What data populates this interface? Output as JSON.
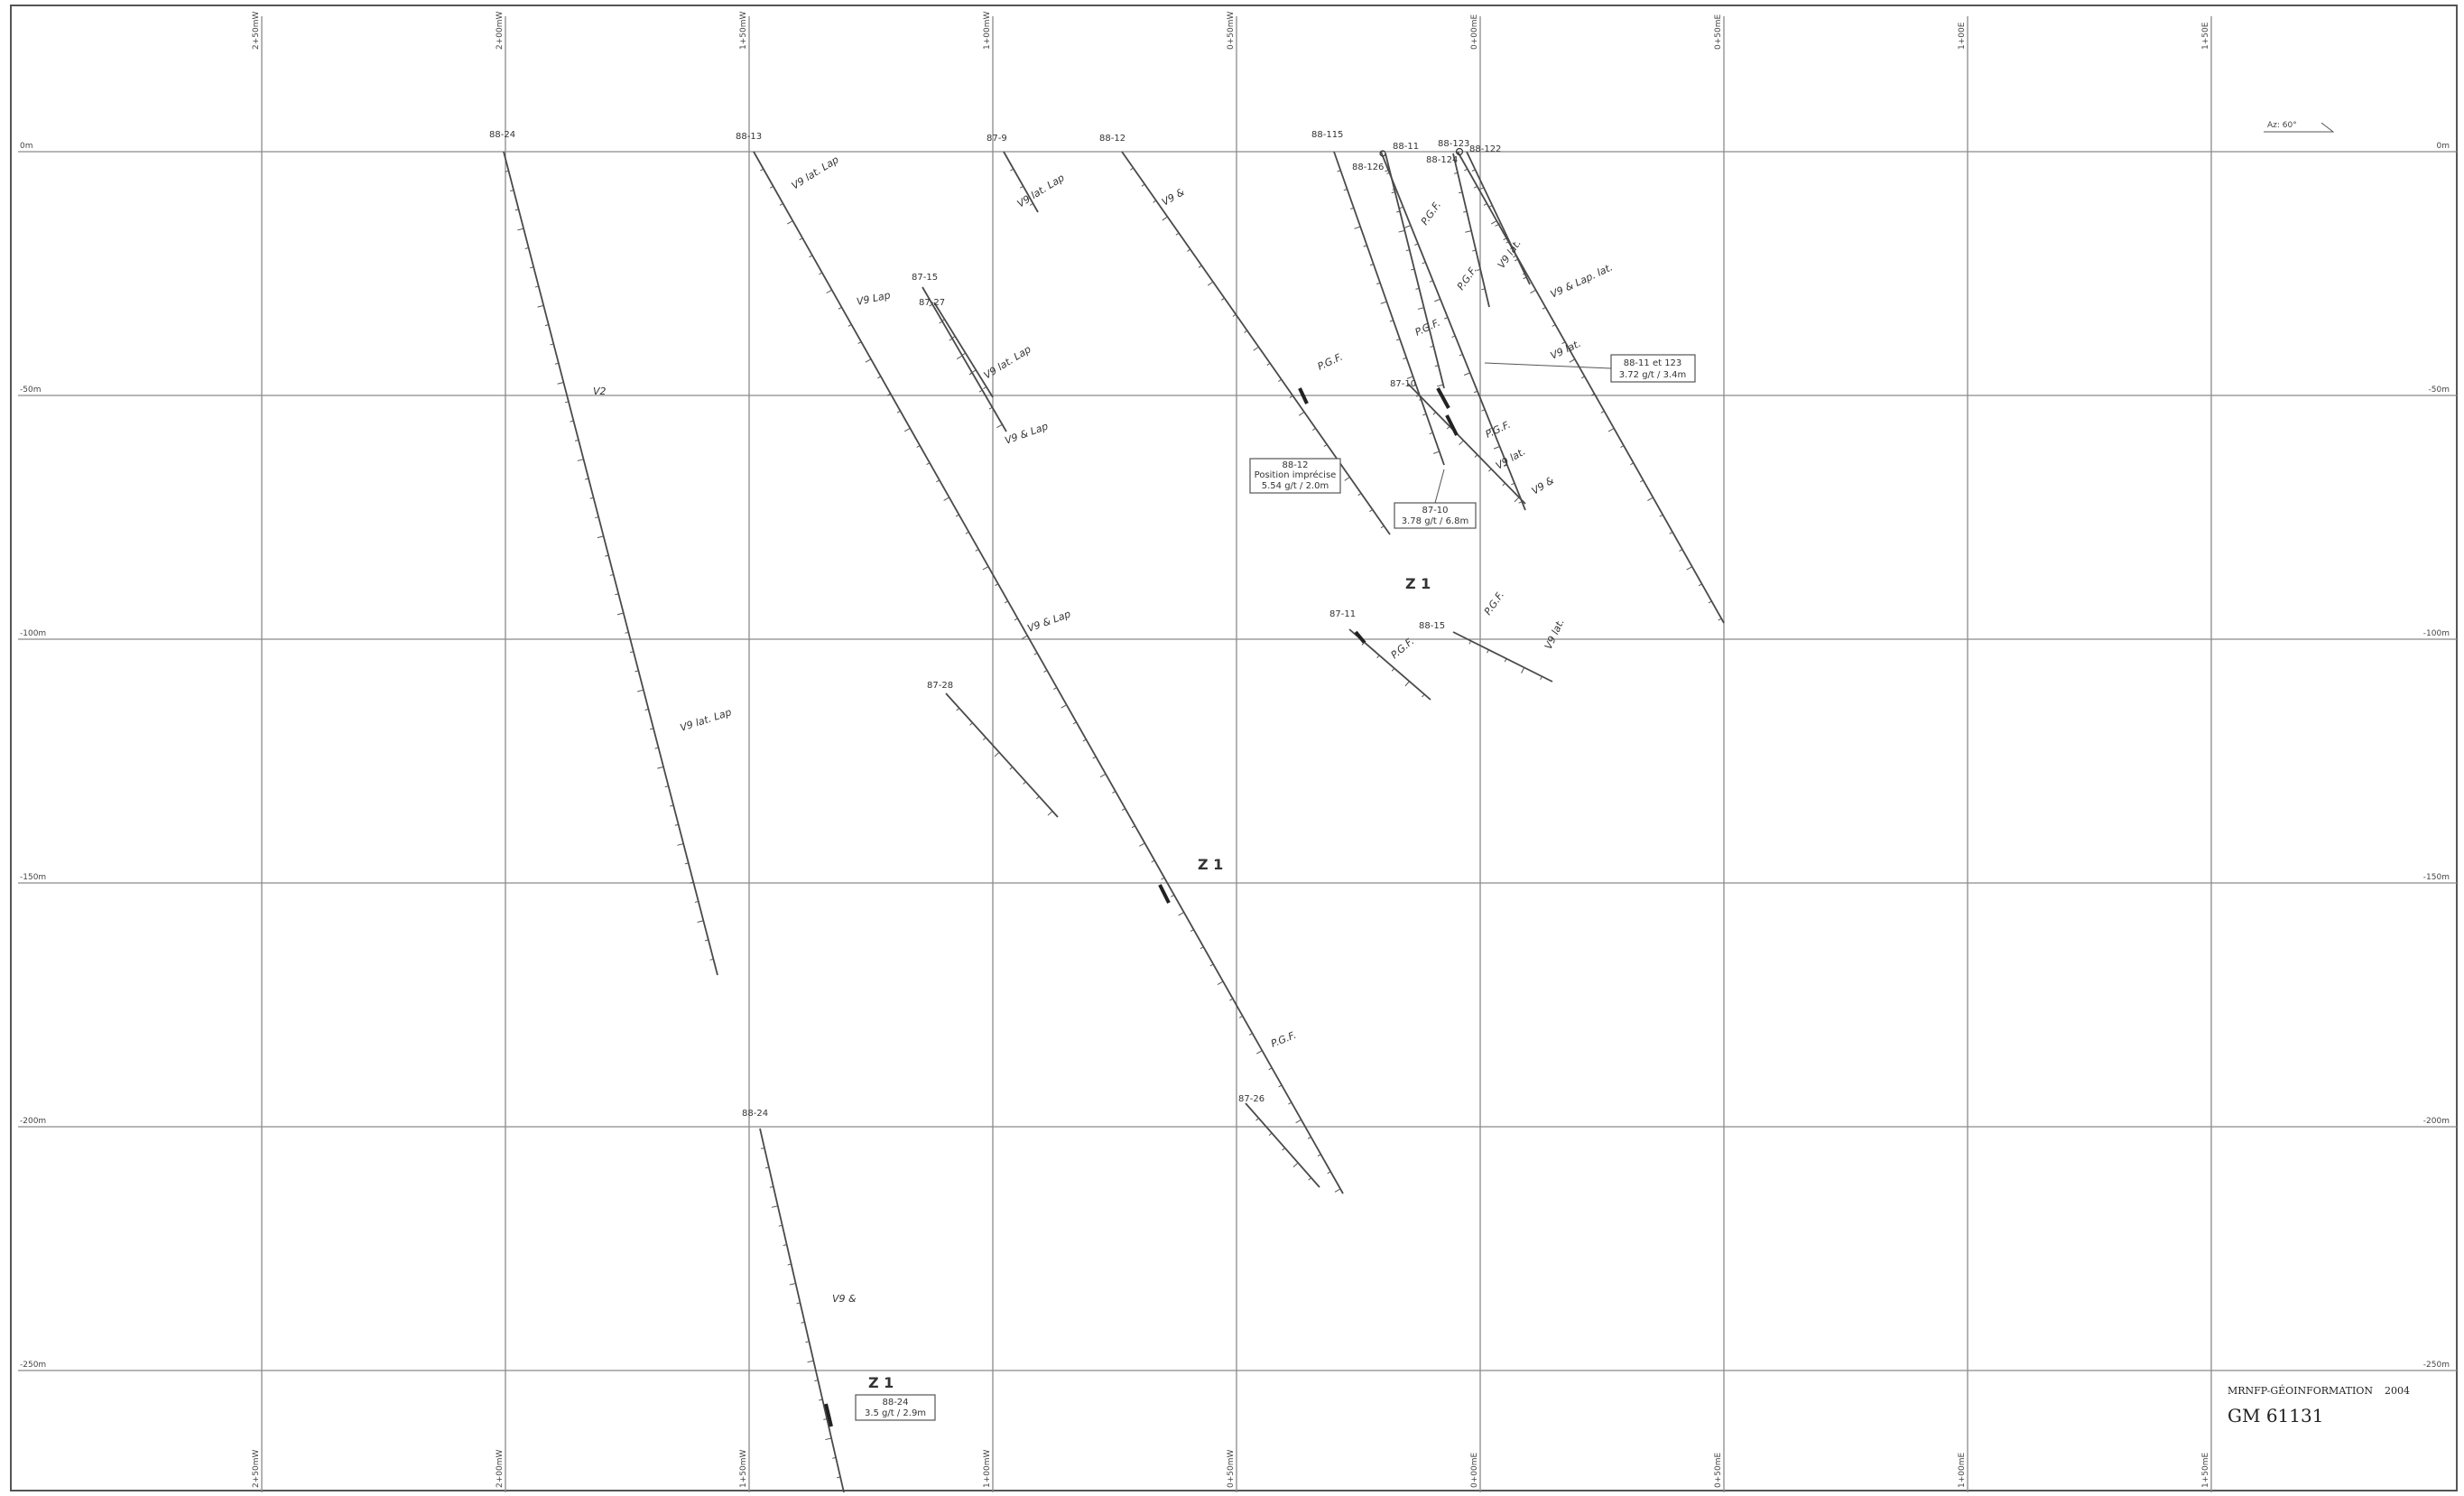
{
  "depth_labels": [
    "0m",
    "-50m",
    "-100m",
    "-150m",
    "-200m",
    "-250m"
  ],
  "easting_labels_top": [
    "2+50mW",
    "2+00mW",
    "1+50mW",
    "1+00mW",
    "0+50mW",
    "0+00mE",
    "0+50mE",
    "1+00E",
    "1+50E"
  ],
  "easting_labels_bottom": [
    "2+50mW",
    "2+00mW",
    "1+50mW",
    "1+00mW",
    "0+50mW",
    "0+00mE",
    "0+50mE",
    "1+00mE",
    "1+50mE"
  ],
  "azimuth": "Az: 60°",
  "drill_holes": [
    {
      "id": "88-24",
      "label": "88-24"
    },
    {
      "id": "88-13",
      "label": "88-13"
    },
    {
      "id": "87-9",
      "label": "87-9"
    },
    {
      "id": "88-12",
      "label": "88-12"
    },
    {
      "id": "88-115",
      "label": "88-115"
    },
    {
      "id": "88-11",
      "label": "88-11"
    },
    {
      "id": "88-123",
      "label": "88-123"
    },
    {
      "id": "88-126",
      "label": "88-126"
    },
    {
      "id": "88-124",
      "label": "88-124"
    },
    {
      "id": "88-122",
      "label": "88-122"
    },
    {
      "id": "87-15",
      "label": "87-15"
    },
    {
      "id": "87-27",
      "label": "87-27"
    },
    {
      "id": "87-10",
      "label": "87-10"
    },
    {
      "id": "87-11",
      "label": "87-11"
    },
    {
      "id": "88-15",
      "label": "88-15"
    },
    {
      "id": "87-28",
      "label": "87-28"
    },
    {
      "id": "87-26",
      "label": "87-26"
    },
    {
      "id": "88-24b",
      "label": "88-24"
    }
  ],
  "unit_labels": [
    "V9 lat. Lap",
    "V9 Lap",
    "V2",
    "V9 lat. Lap",
    "V9 & Lap",
    "V9 lat. Lap",
    "V9 & Lap",
    "V9 &",
    "V9 lat. Lap",
    "V9 lat.",
    "V9 & Lap. lat.",
    "V9 lat.",
    "V9 &",
    "V9 lat.",
    "V9 lat.",
    "V9 &",
    "P.G.F.",
    "P.G.F.",
    "P.G.F.",
    "P.G.F.",
    "P.G.F.",
    "P.G.F.",
    "P.G.F.",
    "P.G.F."
  ],
  "zones": [
    "Z 1",
    "Z 1",
    "Z 1"
  ],
  "annotations": [
    {
      "hole": "88-11 et 123",
      "value": "3.72 g/t / 3.4m"
    },
    {
      "hole": "88-12",
      "note": "Position imprécise",
      "value": "5.54 g/t / 2.0m"
    },
    {
      "hole": "87-10",
      "value": "3.78 g/t / 6.8m"
    },
    {
      "hole": "88-24",
      "value": "3.5 g/t / 2.9m"
    }
  ],
  "credit": {
    "agency": "MRNFP-GÉOINFORMATION",
    "year": "2004",
    "document": "GM 61131"
  }
}
